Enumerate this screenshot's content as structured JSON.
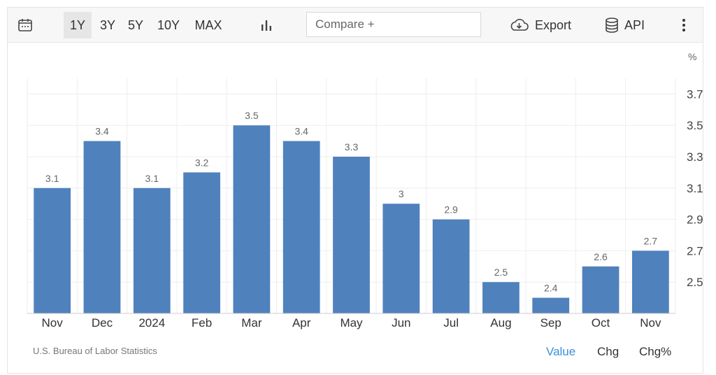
{
  "toolbar": {
    "ranges": [
      "1Y",
      "3Y",
      "5Y",
      "10Y",
      "MAX"
    ],
    "active_range": "1Y",
    "compare_placeholder": "Compare +",
    "export_label": "Export",
    "api_label": "API"
  },
  "colors": {
    "bar": "#4f81bd",
    "active_tab": "#3d8fd8"
  },
  "chart_data": {
    "type": "bar",
    "categories": [
      "Nov",
      "Dec",
      "2024",
      "Feb",
      "Mar",
      "Apr",
      "May",
      "Jun",
      "Jul",
      "Aug",
      "Sep",
      "Oct",
      "Nov"
    ],
    "values": [
      3.1,
      3.4,
      3.1,
      3.2,
      3.5,
      3.4,
      3.3,
      3.0,
      2.9,
      2.5,
      2.4,
      2.6,
      2.7
    ],
    "value_labels": [
      "3.1",
      "3.4",
      "3.1",
      "3.2",
      "3.5",
      "3.4",
      "3.3",
      "3",
      "2.9",
      "2.5",
      "2.4",
      "2.6",
      "2.7"
    ],
    "y_unit": "%",
    "y_ticks": [
      2.5,
      2.7,
      2.9,
      3.1,
      3.3,
      3.5,
      3.7
    ],
    "y_tick_labels": [
      "2.5",
      "2.7",
      "2.9",
      "3.1",
      "3.3",
      "3.5",
      "3.7"
    ],
    "ylim": [
      2.3,
      3.8
    ],
    "grid": true,
    "y_axis_side": "right"
  },
  "footer": {
    "source": "U.S. Bureau of Labor Statistics",
    "tabs": [
      "Value",
      "Chg",
      "Chg%"
    ],
    "active_tab": "Value"
  }
}
